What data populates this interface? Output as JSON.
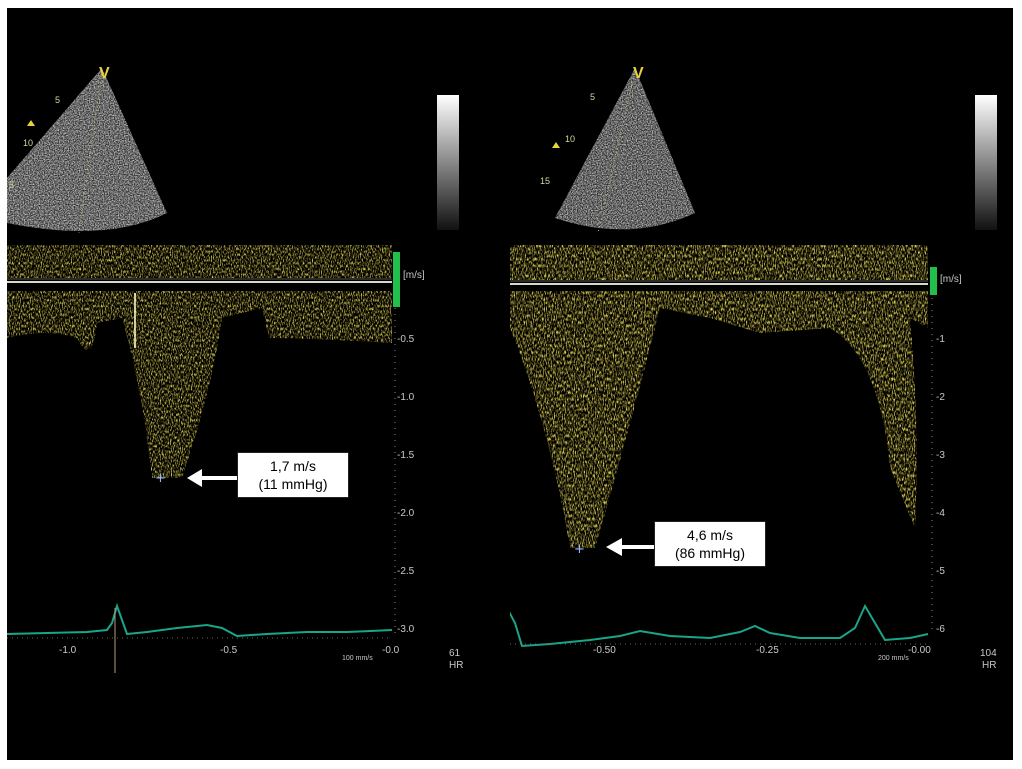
{
  "left_panel": {
    "sector_marker": "V",
    "depth_labels": [
      "5",
      "10",
      "5"
    ],
    "unit_label": "[m/s]",
    "velocity_ticks": [
      "-0.5",
      "-1.0",
      "-1.5",
      "-2.0",
      "-2.5",
      "-3.0"
    ],
    "time_ticks": [
      "-1.0",
      "-0.5",
      "-0.0"
    ],
    "sweep_speed": "100 mm/s",
    "heart_rate_value": "61",
    "heart_rate_label": "HR",
    "callout": {
      "line1": "1,7 m/s",
      "line2": "(11 mmHg)"
    }
  },
  "right_panel": {
    "sector_marker": "V",
    "depth_labels": [
      "5",
      "10",
      "15"
    ],
    "unit_label": "[m/s]",
    "velocity_ticks": [
      "-1",
      "-2",
      "-3",
      "-4",
      "-5",
      "-6"
    ],
    "time_ticks": [
      "-0.50",
      "-0.25",
      "-0.00"
    ],
    "sweep_speed": "200 mm/s",
    "heart_rate_value": "104",
    "heart_rate_label": "HR",
    "callout": {
      "line1": "4,6 m/s",
      "line2": "(86 mmHg)"
    }
  },
  "colors": {
    "background": "#000000",
    "doppler": "#e8c21e",
    "ecg": "#1aa58a",
    "baseline": "#d8d8c8",
    "scale_bar": "#22c04a"
  }
}
